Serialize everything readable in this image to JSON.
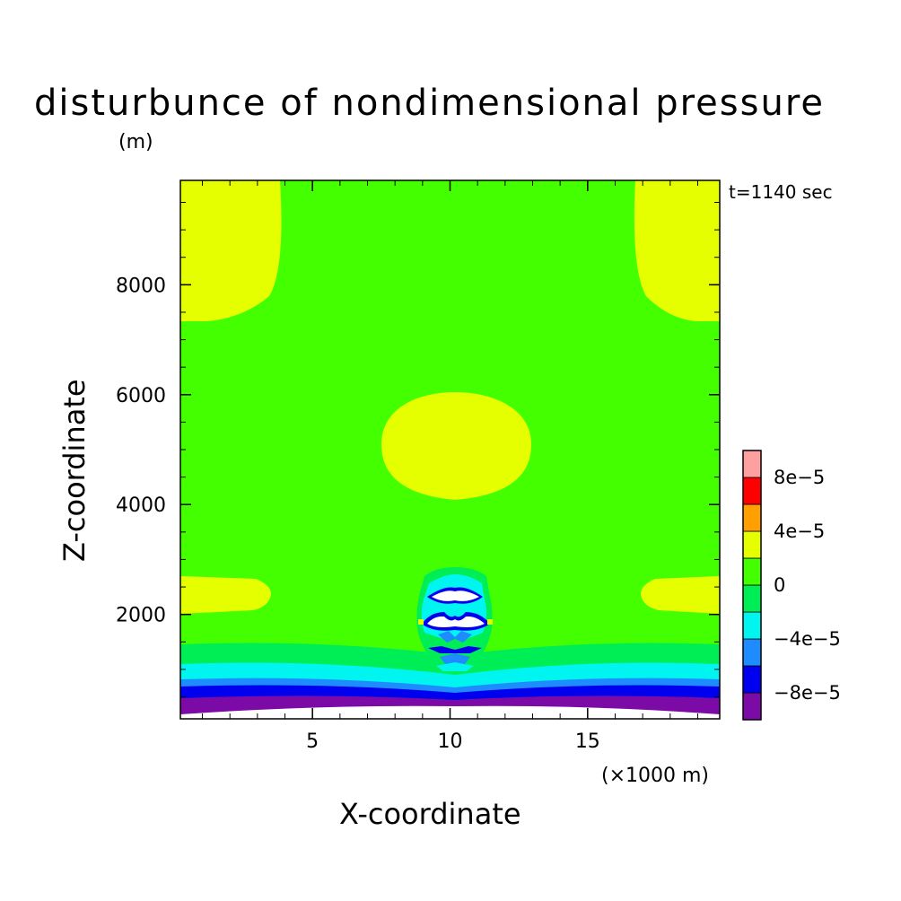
{
  "chart_data": {
    "type": "heatmap",
    "title": "disturbunce of nondimensional pressure",
    "y_unit": "(m)",
    "time_label": "t=1140 sec",
    "xlabel": "X-coordinate",
    "ylabel": "Z-coordinate",
    "x_unit": "(×1000 m)",
    "xlim": [
      0.2,
      19.8
    ],
    "ylim": [
      100,
      9900
    ],
    "x_ticks": [
      5,
      10,
      15
    ],
    "y_ticks": [
      2000,
      4000,
      6000,
      8000
    ],
    "x_tick_labels": [
      "5",
      "10",
      "15"
    ],
    "y_tick_labels": [
      "2000",
      "4000",
      "6000",
      "8000"
    ],
    "background_level_color": "#44ff00",
    "colorbar": {
      "levels": [
        {
          "range": [
            -0.0001,
            -8e-05
          ],
          "color": "#7b0aa6"
        },
        {
          "range": [
            -8e-05,
            -6e-05
          ],
          "color": "#0000ee"
        },
        {
          "range": [
            -6e-05,
            -4e-05
          ],
          "color": "#1e8cff"
        },
        {
          "range": [
            -4e-05,
            -2e-05
          ],
          "color": "#00f5f0"
        },
        {
          "range": [
            -2e-05,
            0
          ],
          "color": "#00ee55"
        },
        {
          "range": [
            0,
            2e-05
          ],
          "color": "#44ff00"
        },
        {
          "range": [
            2e-05,
            4e-05
          ],
          "color": "#e6ff00"
        },
        {
          "range": [
            4e-05,
            6e-05
          ],
          "color": "#ffa000"
        },
        {
          "range": [
            6e-05,
            8e-05
          ],
          "color": "#ff0000"
        },
        {
          "range": [
            8e-05,
            0.0001
          ],
          "color": "#ffa0a0"
        }
      ],
      "tick_labels": [
        {
          "value": -8e-05,
          "label": "−8e−5"
        },
        {
          "value": -4e-05,
          "label": "−4e−5"
        },
        {
          "value": 0,
          "label": "0"
        },
        {
          "value": 4e-05,
          "label": "4e−5"
        },
        {
          "value": 8e-05,
          "label": "8e−5"
        }
      ]
    },
    "regions": [
      {
        "name": "positive-upper-left",
        "value_range": [
          2e-05,
          4e-05
        ],
        "x": [
          0.2,
          3.7
        ],
        "z": [
          7350,
          9900
        ]
      },
      {
        "name": "positive-upper-right",
        "value_range": [
          2e-05,
          4e-05
        ],
        "x": [
          16.3,
          19.8
        ],
        "z": [
          7350,
          9900
        ]
      },
      {
        "name": "positive-center",
        "value_range": [
          2e-05,
          4e-05
        ],
        "x": [
          7.5,
          12.8
        ],
        "z": [
          4100,
          6050
        ]
      },
      {
        "name": "positive-low-left",
        "value_range": [
          2e-05,
          4e-05
        ],
        "x": [
          0.2,
          3.2
        ],
        "z": [
          2100,
          2650
        ]
      },
      {
        "name": "positive-low-right",
        "value_range": [
          2e-05,
          4e-05
        ],
        "x": [
          16.8,
          19.8
        ],
        "z": [
          2100,
          2650
        ]
      },
      {
        "name": "negative-band-1",
        "value_range": [
          -2e-05,
          0
        ],
        "z": [
          1300,
          1480
        ]
      },
      {
        "name": "negative-band-2",
        "value_range": [
          -4e-05,
          -2e-05
        ],
        "z": [
          800,
          1100
        ]
      },
      {
        "name": "negative-band-3",
        "value_range": [
          -6e-05,
          -4e-05
        ],
        "z": [
          600,
          800
        ]
      },
      {
        "name": "negative-band-4",
        "value_range": [
          -8e-05,
          -6e-05
        ],
        "z": [
          400,
          600
        ]
      },
      {
        "name": "negative-band-5",
        "value_range": [
          -0.0001,
          -8e-05
        ],
        "z": [
          100,
          400
        ]
      },
      {
        "name": "central-disturbance",
        "value_range": [
          -0.0001,
          0.0001
        ],
        "x": [
          8.9,
          11.4
        ],
        "z": [
          900,
          2750
        ]
      }
    ]
  }
}
